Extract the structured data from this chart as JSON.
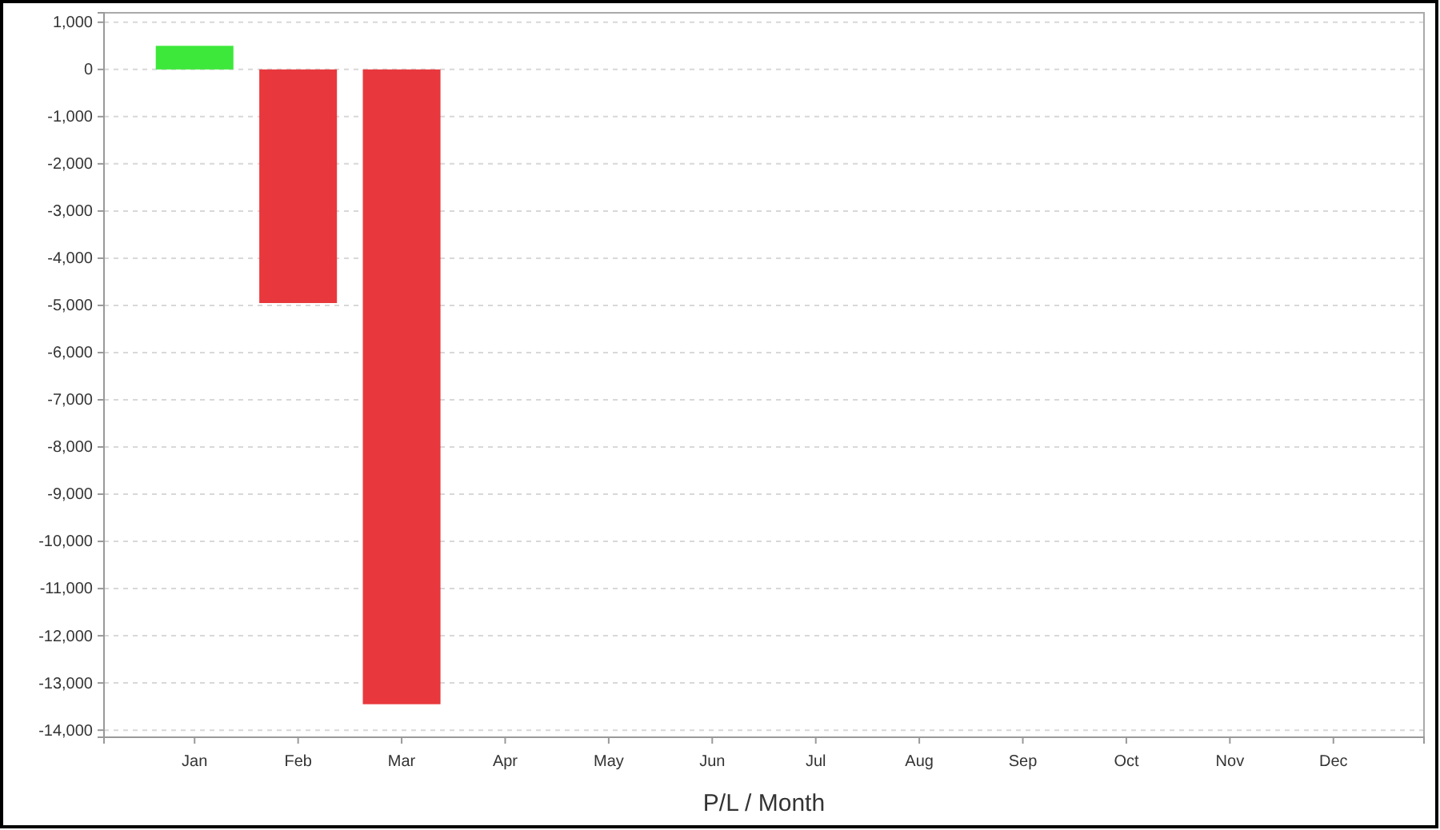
{
  "chart_data": {
    "type": "bar",
    "xlabel": "P/L / Month",
    "categories": [
      "Jan",
      "Feb",
      "Mar",
      "Apr",
      "May",
      "Jun",
      "Jul",
      "Aug",
      "Sep",
      "Oct",
      "Nov",
      "Dec"
    ],
    "values": [
      500,
      -4950,
      -13450,
      null,
      null,
      null,
      null,
      null,
      null,
      null,
      null,
      null
    ],
    "colors": [
      "#3de83a",
      "#e8383d",
      "#e8383d",
      null,
      null,
      null,
      null,
      null,
      null,
      null,
      null,
      null
    ],
    "ylim": [
      -14150,
      1200
    ],
    "yticks": [
      {
        "value": 1000,
        "label": "1,000"
      },
      0,
      {
        "value": -1000,
        "label": "-1,000"
      },
      {
        "value": -2000,
        "label": "-2,000"
      },
      {
        "value": -3000,
        "label": "-3,000"
      },
      {
        "value": -4000,
        "label": "-4,000"
      },
      {
        "value": -5000,
        "label": "-5,000"
      },
      {
        "value": -6000,
        "label": "-6,000"
      },
      {
        "value": -7000,
        "label": "-7,000"
      },
      {
        "value": -8000,
        "label": "-8,000"
      },
      {
        "value": -9000,
        "label": "-9,000"
      },
      {
        "value": -10000,
        "label": "-10,000"
      },
      {
        "value": -11000,
        "label": "-11,000"
      },
      {
        "value": -12000,
        "label": "-12,000"
      },
      {
        "value": -13000,
        "label": "-13,000"
      },
      {
        "value": -14000,
        "label": "-14,000"
      }
    ],
    "grid": "y"
  }
}
